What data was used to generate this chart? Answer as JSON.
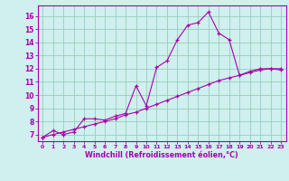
{
  "xlabel": "Windchill (Refroidissement éolien,°C)",
  "bg_color": "#cff0ee",
  "line_color": "#aa00aa",
  "grid_color": "#99ccbb",
  "line1_x": [
    0,
    1,
    2,
    3,
    4,
    5,
    6,
    7,
    8,
    9,
    10,
    11,
    12,
    13,
    14,
    15,
    16,
    17,
    18,
    19,
    20,
    21,
    22,
    23
  ],
  "line1_y": [
    6.8,
    7.3,
    7.0,
    7.2,
    8.2,
    8.2,
    8.1,
    8.4,
    8.6,
    10.7,
    9.2,
    12.1,
    12.6,
    14.2,
    15.3,
    15.5,
    16.3,
    14.7,
    14.2,
    11.5,
    11.8,
    12.0,
    12.0,
    11.9
  ],
  "line2_x": [
    0,
    1,
    2,
    3,
    4,
    5,
    6,
    7,
    8,
    9,
    10,
    11,
    12,
    13,
    14,
    15,
    16,
    17,
    18,
    19,
    20,
    21,
    22,
    23
  ],
  "line2_y": [
    6.8,
    7.0,
    7.2,
    7.4,
    7.6,
    7.8,
    8.0,
    8.2,
    8.5,
    8.7,
    9.0,
    9.3,
    9.6,
    9.9,
    10.2,
    10.5,
    10.8,
    11.1,
    11.3,
    11.5,
    11.7,
    11.9,
    12.0,
    12.0
  ],
  "xlim": [
    -0.5,
    23.5
  ],
  "ylim": [
    6.5,
    16.8
  ],
  "yticks": [
    7,
    8,
    9,
    10,
    11,
    12,
    13,
    14,
    15,
    16
  ],
  "xticks": [
    0,
    1,
    2,
    3,
    4,
    5,
    6,
    7,
    8,
    9,
    10,
    11,
    12,
    13,
    14,
    15,
    16,
    17,
    18,
    19,
    20,
    21,
    22,
    23
  ]
}
